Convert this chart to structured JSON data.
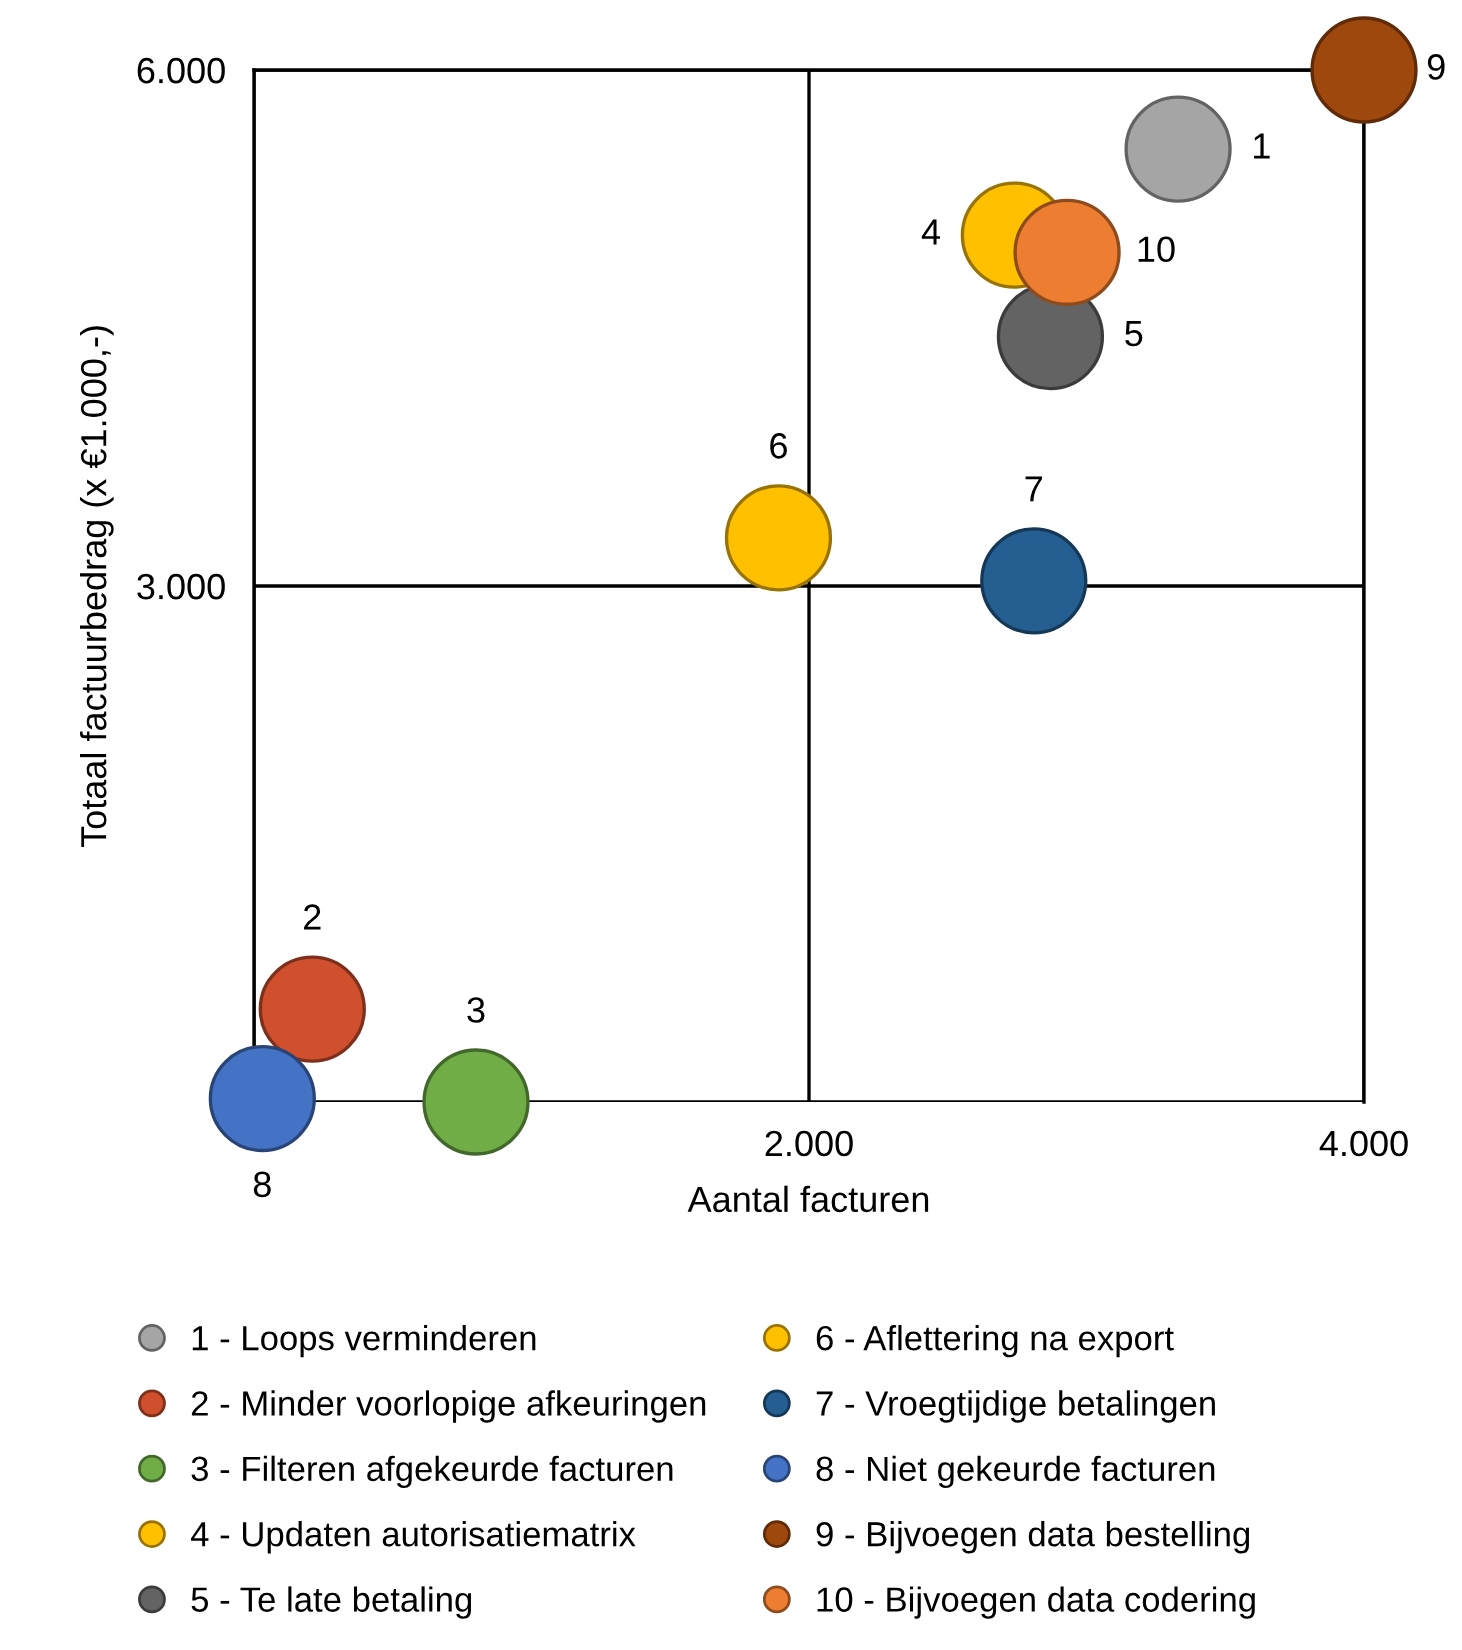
{
  "chart_data": {
    "type": "scatter",
    "xlabel": "Aantal facturen",
    "ylabel": "Totaal factuurbedrag (x €1.000,-)",
    "xlim": [
      0,
      4000
    ],
    "ylim": [
      0,
      6000
    ],
    "xticks": [
      {
        "value": 0,
        "label": null
      },
      {
        "value": 2000,
        "label": "2.000"
      },
      {
        "value": 4000,
        "label": "4.000"
      }
    ],
    "yticks": [
      {
        "value": 0,
        "label": null
      },
      {
        "value": 3000,
        "label": "3.000"
      },
      {
        "value": 6000,
        "label": "6.000"
      }
    ],
    "grid": true,
    "legend": "bottom",
    "marker": "circle",
    "series": [
      {
        "name": "1 - Loops verminderen",
        "color": "#a5a5a5",
        "x": [
          3330
        ],
        "values": [
          5540
        ]
      },
      {
        "name": "2 - Minder voorlopige afkeuringen",
        "color": "#d0502e",
        "x": [
          210
        ],
        "values": [
          540
        ]
      },
      {
        "name": "3 - Filteren afgekeurde facturen",
        "color": "#70ad47",
        "x": [
          800
        ],
        "values": [
          0
        ]
      },
      {
        "name": "4 - Updaten autorisatiematrix",
        "color": "#ffc000",
        "x": [
          2740
        ],
        "values": [
          5040
        ]
      },
      {
        "name": "5 - Te late betaling",
        "color": "#636363",
        "x": [
          2870
        ],
        "values": [
          4450
        ]
      },
      {
        "name": "6 - Aflettering na export",
        "color": "#ffc000",
        "x": [
          1890
        ],
        "values": [
          3280
        ]
      },
      {
        "name": "7 - Vroegtijdige betalingen",
        "color": "#255e91",
        "x": [
          2810
        ],
        "values": [
          3030
        ]
      },
      {
        "name": "8 - Niet gekeurde facturen",
        "color": "#4472c4",
        "x": [
          30
        ],
        "values": [
          20
        ]
      },
      {
        "name": "9 - Bijvoegen data bestelling",
        "color": "#9e480e",
        "x": [
          4000
        ],
        "values": [
          6000
        ]
      },
      {
        "name": "10 - Bijvoegen data codering",
        "color": "#ed7d31",
        "x": [
          2930
        ],
        "values": [
          4940
        ]
      }
    ],
    "annotations": [
      {
        "text": "1",
        "x": 3330,
        "y": 5540
      },
      {
        "text": "2",
        "x": 210,
        "y": 540
      },
      {
        "text": "3",
        "x": 800,
        "y": 0
      },
      {
        "text": "4",
        "x": 2740,
        "y": 5040
      },
      {
        "text": "5",
        "x": 2870,
        "y": 4450
      },
      {
        "text": "6",
        "x": 1890,
        "y": 3280
      },
      {
        "text": "7",
        "x": 2810,
        "y": 3030
      },
      {
        "text": "8",
        "x": 30,
        "y": 20
      },
      {
        "text": "9",
        "x": 4000,
        "y": 6000
      },
      {
        "text": "10",
        "x": 2930,
        "y": 4940
      }
    ]
  }
}
